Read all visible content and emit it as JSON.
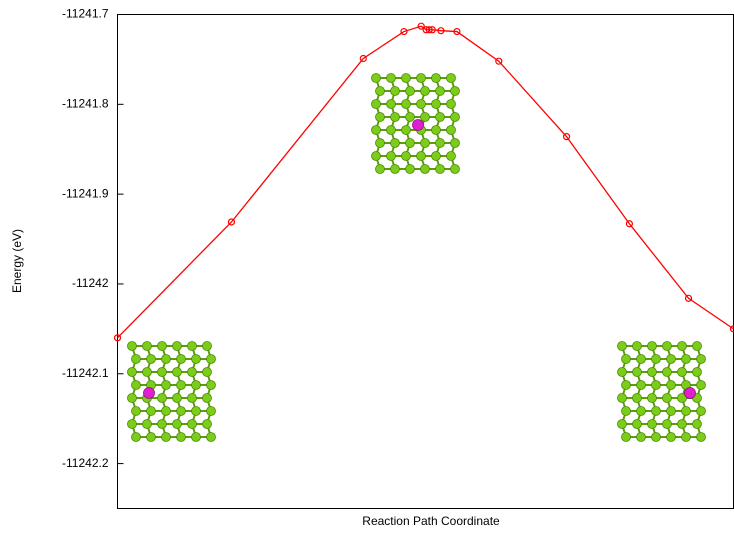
{
  "chart_data": {
    "type": "line",
    "xlabel": "Reaction Path Coordinate",
    "ylabel": "Energy (eV)",
    "x": [
      0,
      0.185,
      0.399,
      0.465,
      0.493,
      0.501,
      0.506,
      0.511,
      0.525,
      0.551,
      0.619,
      0.729,
      0.831,
      0.927,
      1
    ],
    "series": [
      {
        "color": "#ff0000",
        "values": [
          -11242.06,
          -11241.931,
          -11241.749,
          -11241.719,
          -11241.713,
          -11241.717,
          -11241.717,
          -11241.717,
          -11241.718,
          -11241.719,
          -11241.752,
          -11241.836,
          -11241.933,
          -11242.016,
          -11242.05
        ]
      }
    ],
    "xlim": [
      0,
      1
    ],
    "ylim": [
      -11242.25,
      -11241.7
    ],
    "yticks": [
      -11241.7,
      -11241.8,
      -11241.9,
      -11242,
      -11242.1,
      -11242.2
    ]
  }
}
